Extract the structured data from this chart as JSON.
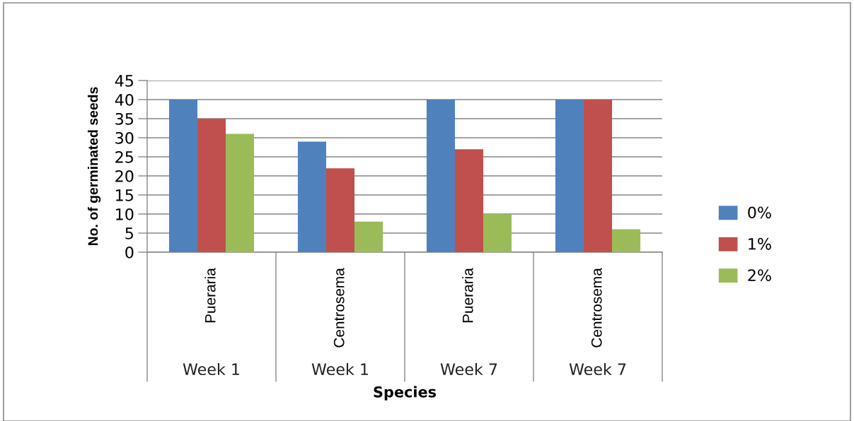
{
  "chart_data": {
    "type": "bar",
    "xlabel": "Species",
    "ylabel": "No. of germinated seeds",
    "categories": [
      "Pueraria",
      "Centrosema",
      "Pueraria",
      "Centrosema"
    ],
    "annotations": [
      "Week 1",
      "Week 1",
      "Week 7",
      "Week 7"
    ],
    "series": [
      {
        "name": "0%",
        "color": "#4f81bd",
        "values": [
          40,
          29,
          40,
          40
        ]
      },
      {
        "name": "1%",
        "color": "#c0504d",
        "values": [
          35,
          22,
          27,
          40
        ]
      },
      {
        "name": "2%",
        "color": "#9bbb59",
        "values": [
          31,
          8,
          10,
          6
        ]
      }
    ],
    "ylim": [
      0,
      45
    ],
    "yticks": [
      0,
      5,
      10,
      15,
      20,
      25,
      30,
      35,
      40,
      45
    ],
    "grid": "y",
    "legend": "right"
  }
}
